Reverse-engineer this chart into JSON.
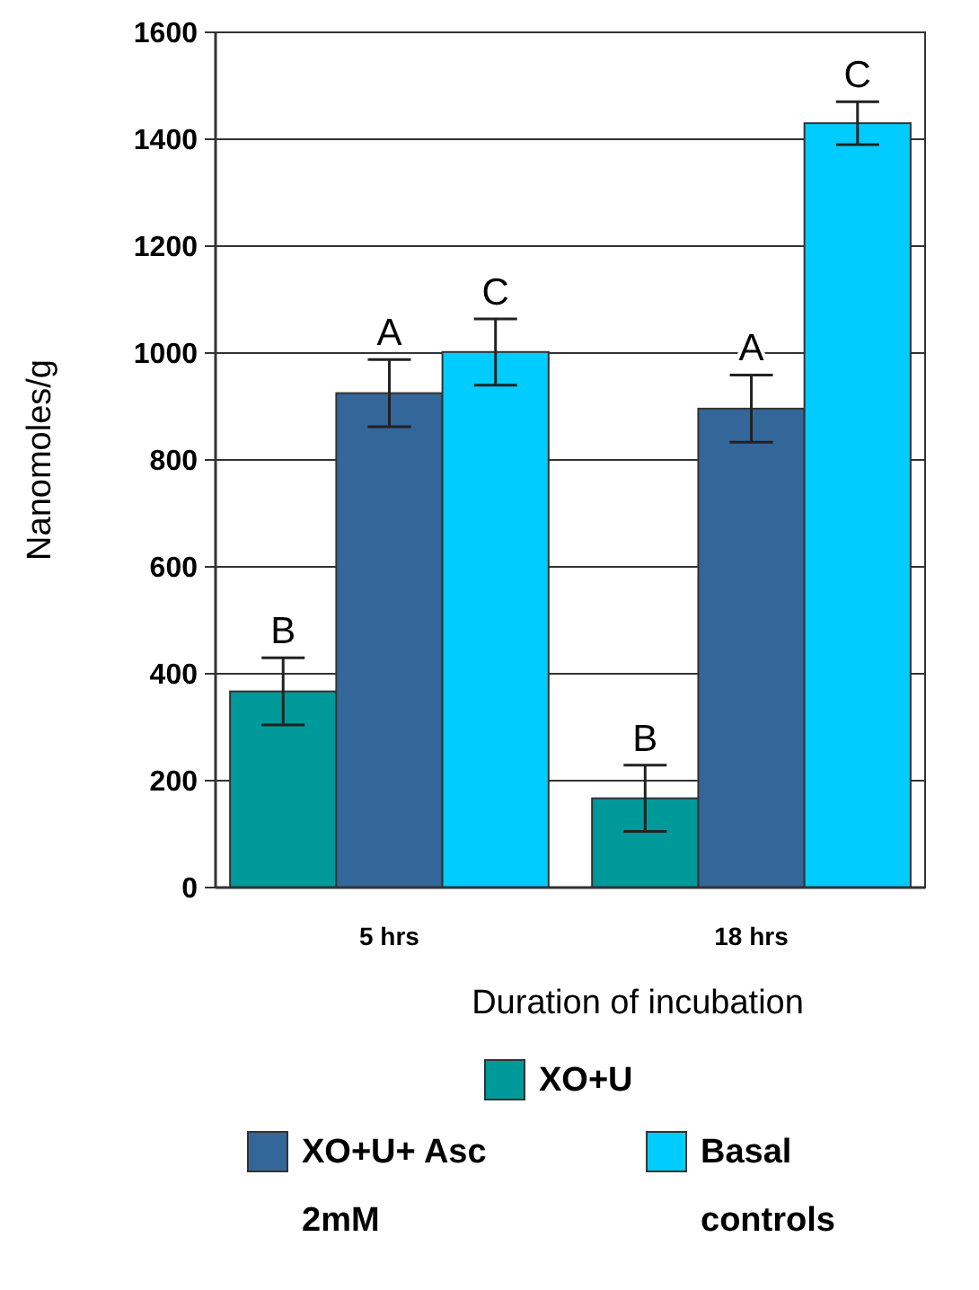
{
  "chart_data": {
    "type": "bar",
    "xlabel": "Duration of incubation",
    "ylabel": "Nanomoles/g",
    "categories": [
      "5 hrs",
      "18 hrs"
    ],
    "series": [
      {
        "name": "XO+U",
        "color": "#009999",
        "values": [
          367,
          167
        ],
        "errors": [
          63,
          62
        ]
      },
      {
        "name": "XO+U+ Asc 2mM",
        "color": "#336699",
        "values": [
          925,
          896
        ],
        "errors": [
          63,
          63
        ]
      },
      {
        "name": "Basal controls",
        "color": "#00ccff",
        "values": [
          1002,
          1430
        ],
        "errors": [
          62,
          40
        ]
      }
    ],
    "annotations": [
      "B",
      "A",
      "C",
      "B",
      "A",
      "C"
    ],
    "ylim": [
      0,
      1600
    ],
    "yticks": [
      0,
      200,
      400,
      600,
      800,
      1000,
      1200,
      1400,
      1600
    ],
    "grid": "y",
    "legend": "bottom"
  }
}
